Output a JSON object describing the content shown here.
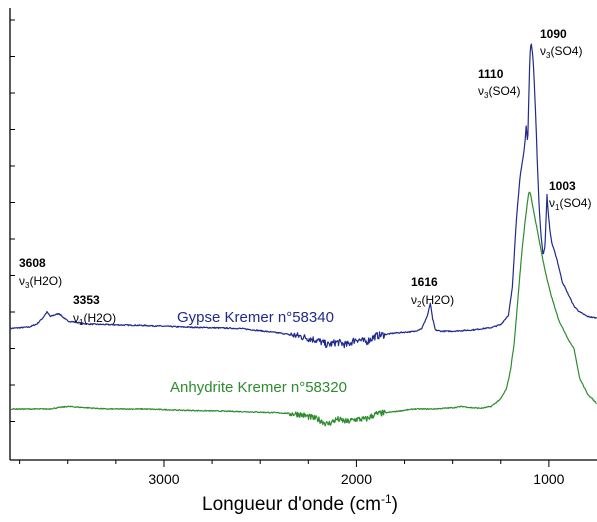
{
  "chart_data": {
    "type": "line",
    "title": "",
    "xlabel": {
      "text": "Longueur d'onde (cm",
      "sup": "-1",
      "close": ")"
    },
    "ylabel": "",
    "x_reversed": true,
    "xlim": [
      3800,
      750
    ],
    "x_ticks": [
      {
        "value": 3000,
        "label": "3000"
      },
      {
        "value": 2000,
        "label": "2000"
      },
      {
        "value": 1000,
        "label": "1000"
      }
    ],
    "y_ticks_unlabeled": true,
    "grid": false,
    "legend": "none",
    "series": [
      {
        "name": "Gypse Kremer n°58340",
        "color": "#1f2a8c",
        "x": [
          3800,
          3700,
          3660,
          3630,
          3608,
          3590,
          3570,
          3545,
          3520,
          3500,
          3450,
          3400,
          3300,
          3100,
          2900,
          2600,
          2400,
          2300,
          2200,
          2150,
          2100,
          2050,
          2000,
          1950,
          1900,
          1800,
          1700,
          1660,
          1630,
          1616,
          1605,
          1590,
          1560,
          1500,
          1400,
          1300,
          1250,
          1210,
          1190,
          1170,
          1150,
          1135,
          1125,
          1118,
          1110,
          1104,
          1098,
          1092,
          1090,
          1086,
          1080,
          1070,
          1060,
          1050,
          1040,
          1030,
          1020,
          1010,
          1003,
          996,
          985,
          960,
          930,
          900,
          870,
          840,
          800,
          750
        ],
        "y": [
          0.045,
          0.05,
          0.06,
          0.08,
          0.1,
          0.085,
          0.09,
          0.095,
          0.08,
          0.07,
          0.065,
          0.06,
          0.058,
          0.055,
          0.05,
          0.045,
          0.03,
          0.02,
          0.005,
          -0.01,
          0.0,
          -0.01,
          0.01,
          0.0,
          0.02,
          0.03,
          0.035,
          0.045,
          0.09,
          0.13,
          0.08,
          0.04,
          0.036,
          0.036,
          0.04,
          0.048,
          0.058,
          0.09,
          0.18,
          0.4,
          0.55,
          0.61,
          0.66,
          0.72,
          0.66,
          0.83,
          0.96,
          1.0,
          0.99,
          0.97,
          0.92,
          0.78,
          0.6,
          0.44,
          0.35,
          0.29,
          0.32,
          0.49,
          0.43,
          0.38,
          0.33,
          0.28,
          0.2,
          0.16,
          0.12,
          0.1,
          0.085,
          0.08
        ]
      },
      {
        "name": "Anhydrite Kremer n°58320",
        "color": "#2e8b2e",
        "x": [
          3800,
          3700,
          3600,
          3550,
          3500,
          3400,
          3300,
          3100,
          2900,
          2600,
          2400,
          2300,
          2200,
          2150,
          2100,
          2050,
          2000,
          1950,
          1900,
          1800,
          1700,
          1600,
          1500,
          1450,
          1400,
          1350,
          1300,
          1250,
          1220,
          1200,
          1180,
          1160,
          1150,
          1140,
          1130,
          1120,
          1110,
          1104,
          1100,
          1095,
          1085,
          1070,
          1050,
          1030,
          1010,
          990,
          970,
          950,
          930,
          910,
          890,
          870,
          840,
          800,
          750
        ],
        "y": [
          0.0,
          0.0,
          0.0,
          0.005,
          0.01,
          0.005,
          0.0,
          0.0,
          -0.005,
          -0.01,
          -0.015,
          -0.02,
          -0.04,
          -0.06,
          -0.04,
          -0.05,
          -0.04,
          -0.04,
          -0.02,
          -0.01,
          0.0,
          0.0,
          0.005,
          0.01,
          0.005,
          0.003,
          0.01,
          0.04,
          0.08,
          0.15,
          0.26,
          0.44,
          0.53,
          0.62,
          0.69,
          0.76,
          0.82,
          0.85,
          0.85,
          0.84,
          0.8,
          0.74,
          0.66,
          0.58,
          0.51,
          0.45,
          0.4,
          0.35,
          0.32,
          0.29,
          0.26,
          0.24,
          0.12,
          0.06,
          0.02
        ]
      }
    ],
    "series_labels": {
      "gypse": "Gypse Kremer n°58340",
      "anhydrite": "Anhydrite Kremer n°58320"
    },
    "annotations": [
      {
        "id": "a3608",
        "number": "3608",
        "sym": "ν",
        "sub": "3",
        "group": "(H2O)"
      },
      {
        "id": "a3353",
        "number": "3353",
        "sym": "ν",
        "sub": "1",
        "group": "(H2O)"
      },
      {
        "id": "a1616",
        "number": "1616",
        "sym": "ν",
        "sub": "2",
        "group": "(H2O)"
      },
      {
        "id": "a1110",
        "number": "1110",
        "sym": "ν",
        "sub": "3",
        "group": "(SO4)"
      },
      {
        "id": "a1090",
        "number": "1090",
        "sym": "ν",
        "sub": "3",
        "group": "(SO4)"
      },
      {
        "id": "a1003",
        "number": "1003",
        "sym": "ν",
        "sub": "1",
        "group": "(SO4)"
      }
    ]
  }
}
